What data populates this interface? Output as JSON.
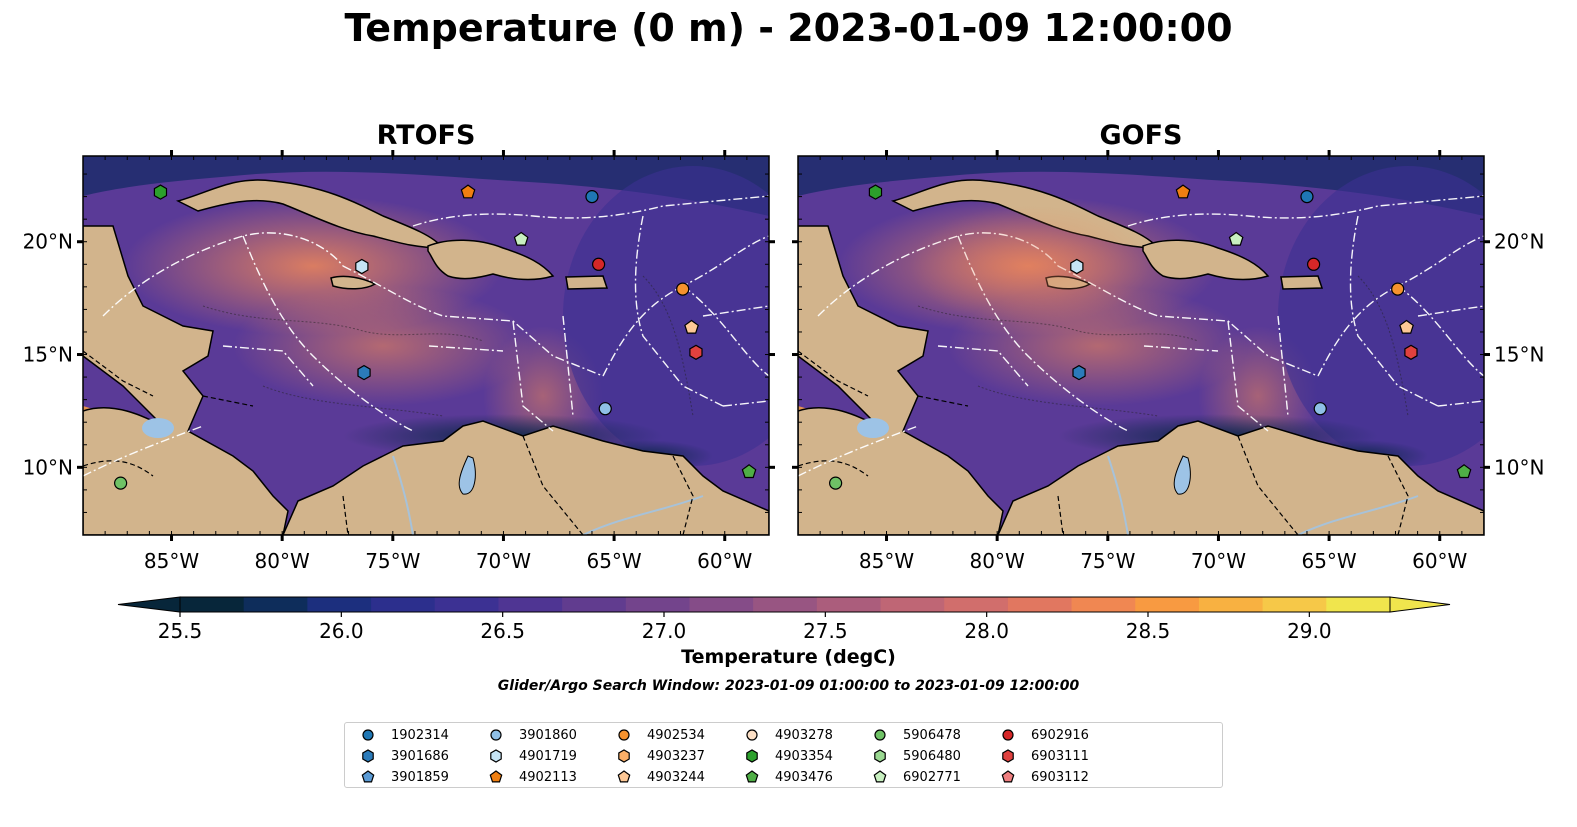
{
  "title": "Temperature (0 m) - 2023-01-09 12:00:00",
  "panels": [
    {
      "title": "RTOFS"
    },
    {
      "title": "GOFS"
    }
  ],
  "axes": {
    "lon_ticks": [
      "85°W",
      "80°W",
      "75°W",
      "70°W",
      "65°W",
      "60°W"
    ],
    "lat_ticks": [
      "20°N",
      "15°N",
      "10°N"
    ]
  },
  "colorbar": {
    "label": "Temperature (degC)",
    "ticks": [
      "25.5",
      "26.0",
      "26.5",
      "27.0",
      "27.5",
      "28.0",
      "28.5",
      "29.0"
    ],
    "range": [
      25.5,
      29.25
    ],
    "colors": [
      "#07263a",
      "#0e2d5b",
      "#1c2f7e",
      "#2c2f8d",
      "#3c3193",
      "#4f3593",
      "#613c8f",
      "#73448c",
      "#854c88",
      "#985582",
      "#ab5d7c",
      "#bf6675",
      "#d16e6c",
      "#e17760",
      "#f08752",
      "#f89a41",
      "#f8b141",
      "#f6c848",
      "#f0e54d"
    ],
    "extend": "both"
  },
  "search_window": "Glider/Argo Search Window: 2023-01-09 01:00:00 to 2023-01-09 12:00:00",
  "legend": {
    "entries": [
      {
        "id": "1902314",
        "marker": "circle",
        "color": "#1f77b4"
      },
      {
        "id": "3901686",
        "marker": "hexagon",
        "color": "#2b7bba"
      },
      {
        "id": "3901859",
        "marker": "pentagon",
        "color": "#5b9bd5"
      },
      {
        "id": "3901860",
        "marker": "circle",
        "color": "#8fbfe6"
      },
      {
        "id": "4901719",
        "marker": "hexagon",
        "color": "#c6e4f5"
      },
      {
        "id": "4902113",
        "marker": "pentagon",
        "color": "#f07f11"
      },
      {
        "id": "4902534",
        "marker": "circle",
        "color": "#f6922e"
      },
      {
        "id": "4903237",
        "marker": "hexagon",
        "color": "#fbaf68"
      },
      {
        "id": "4903244",
        "marker": "pentagon",
        "color": "#fdc896"
      },
      {
        "id": "4903278",
        "marker": "circle",
        "color": "#fde0c6"
      },
      {
        "id": "4903354",
        "marker": "hexagon",
        "color": "#2ca02c"
      },
      {
        "id": "4903476",
        "marker": "pentagon",
        "color": "#4fae46"
      },
      {
        "id": "5906478",
        "marker": "circle",
        "color": "#6fc266"
      },
      {
        "id": "5906480",
        "marker": "hexagon",
        "color": "#9ad891"
      },
      {
        "id": "6902771",
        "marker": "pentagon",
        "color": "#c8f0c0"
      },
      {
        "id": "6902916",
        "marker": "circle",
        "color": "#d62728"
      },
      {
        "id": "6903111",
        "marker": "hexagon",
        "color": "#e0413f"
      },
      {
        "id": "6903112",
        "marker": "pentagon",
        "color": "#ef7f80"
      }
    ]
  },
  "map_colors": {
    "land": "#d2b48c",
    "lake": "#9dc3e6",
    "river": "#a7c2d9"
  },
  "floats": [
    {
      "id": "4903354",
      "lon": -85.5,
      "lat": 22.2
    },
    {
      "id": "4902113",
      "lon": -71.6,
      "lat": 22.2
    },
    {
      "id": "1902314",
      "lon": -66.0,
      "lat": 22.0
    },
    {
      "id": "6902771",
      "lon": -69.2,
      "lat": 20.1
    },
    {
      "id": "4901719",
      "lon": -76.4,
      "lat": 18.9
    },
    {
      "id": "6902916",
      "lon": -65.7,
      "lat": 19.0
    },
    {
      "id": "4902534",
      "lon": -61.9,
      "lat": 17.9
    },
    {
      "id": "4903244",
      "lon": -61.5,
      "lat": 16.2
    },
    {
      "id": "6903111",
      "lon": -61.3,
      "lat": 15.1
    },
    {
      "id": "3901686",
      "lon": -76.3,
      "lat": 14.2
    },
    {
      "id": "3901860",
      "lon": -65.4,
      "lat": 12.6
    },
    {
      "id": "5906478",
      "lon": -87.3,
      "lat": 9.3
    },
    {
      "id": "4903476",
      "lon": -58.9,
      "lat": 9.8
    }
  ]
}
